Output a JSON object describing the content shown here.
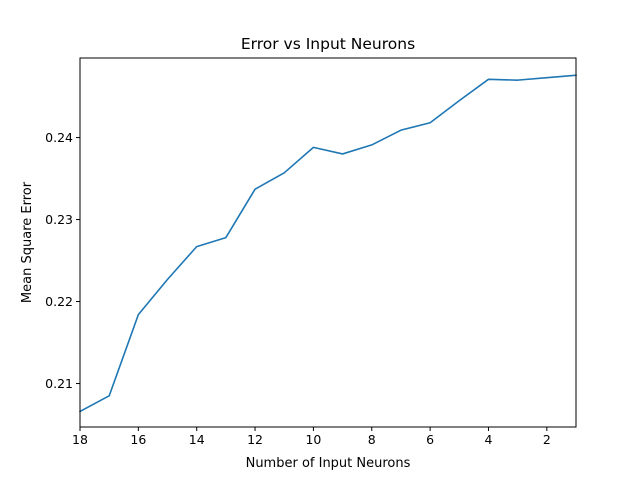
{
  "chart_data": {
    "type": "line",
    "title": "Error vs Input Neurons",
    "xlabel": "Number of Input Neurons",
    "ylabel": "Mean Square Error",
    "x_reversed": true,
    "xlim": [
      18,
      1
    ],
    "ylim": [
      0.2047,
      0.2497
    ],
    "xticks": [
      18,
      16,
      14,
      12,
      10,
      8,
      6,
      4,
      2
    ],
    "yticks": [
      0.21,
      0.22,
      0.23,
      0.24
    ],
    "ytick_labels": [
      "0.21",
      "0.22",
      "0.23",
      "0.24"
    ],
    "grid": false,
    "series": [
      {
        "color": "#1f77b4",
        "x": [
          18,
          17,
          16,
          15,
          14,
          13,
          12,
          11,
          10,
          9,
          8,
          7,
          6,
          5,
          4,
          3,
          2,
          1
        ],
        "y": [
          0.2066,
          0.2085,
          0.2184,
          0.2227,
          0.2267,
          0.2278,
          0.2337,
          0.2357,
          0.2388,
          0.238,
          0.2391,
          0.2409,
          0.2418,
          0.2445,
          0.2471,
          0.247,
          0.2473,
          0.2476
        ]
      }
    ]
  }
}
